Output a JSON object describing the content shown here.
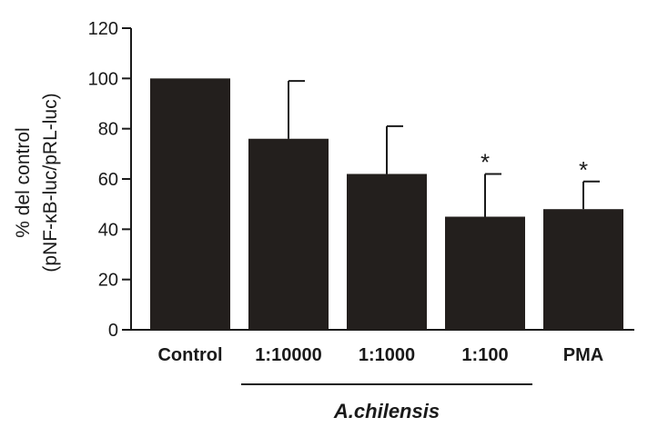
{
  "chart_data": {
    "type": "bar",
    "categories": [
      "Control",
      "1:10000",
      "1:1000",
      "1:100",
      "PMA"
    ],
    "values": [
      100,
      76,
      62,
      45,
      48
    ],
    "errors": [
      0,
      23,
      19,
      17,
      11
    ],
    "significance": [
      "",
      "",
      "",
      "*",
      "*"
    ],
    "ylabel": [
      "% del control",
      "(pNF-κB-luc/pRL-luc)"
    ],
    "xlabel": "",
    "ylim": [
      0,
      120
    ],
    "yticks": [
      0,
      20,
      40,
      60,
      80,
      100,
      120
    ],
    "group": {
      "label": "A.chilensis",
      "categories": [
        "1:10000",
        "1:1000",
        "1:100"
      ]
    },
    "bar_color": "#231f1d",
    "grid": false,
    "legend": "none"
  }
}
